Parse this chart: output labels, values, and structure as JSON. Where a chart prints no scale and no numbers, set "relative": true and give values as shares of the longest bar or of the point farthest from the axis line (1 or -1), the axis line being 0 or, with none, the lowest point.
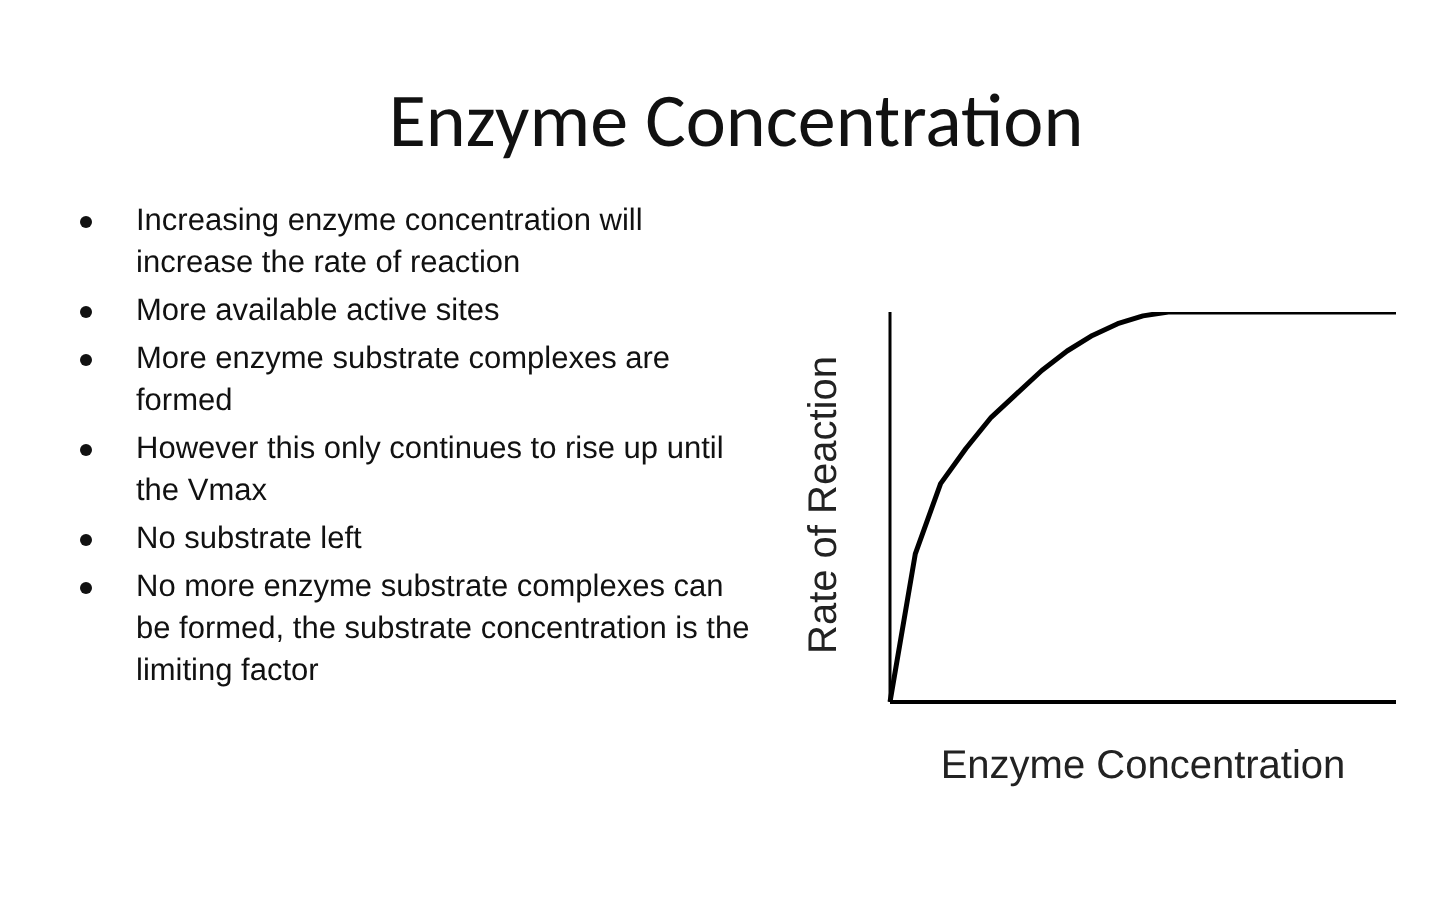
{
  "chart_data": {
    "type": "line",
    "title": "Enzyme Concentration",
    "xlabel": "Enzyme Concentration",
    "ylabel": "Rate of Reaction",
    "relative": true,
    "categories": [
      null,
      null,
      null,
      null,
      null,
      null,
      null,
      null,
      null,
      null,
      null,
      null,
      null,
      null,
      null,
      null,
      null,
      null,
      null,
      null,
      null
    ],
    "series": [
      {
        "color": "#000000",
        "values": [
          0,
          0.38,
          0.56,
          0.65,
          0.73,
          0.79,
          0.85,
          0.9,
          0.94,
          0.97,
          0.99,
          1,
          1,
          1,
          1,
          1,
          1,
          1,
          1,
          1,
          1
        ]
      }
    ],
    "marker": "none",
    "grid": false,
    "legend": false,
    "annotations": [
      "Increasing enzyme concentration will increase the rate of reaction",
      "More available active sites",
      "More enzyme substrate complexes are formed",
      "However this only continues to rise up until the Vmax",
      "No substrate left",
      "No more enzyme substrate complexes can be formed, the substrate concentration is the limiting factor"
    ]
  }
}
